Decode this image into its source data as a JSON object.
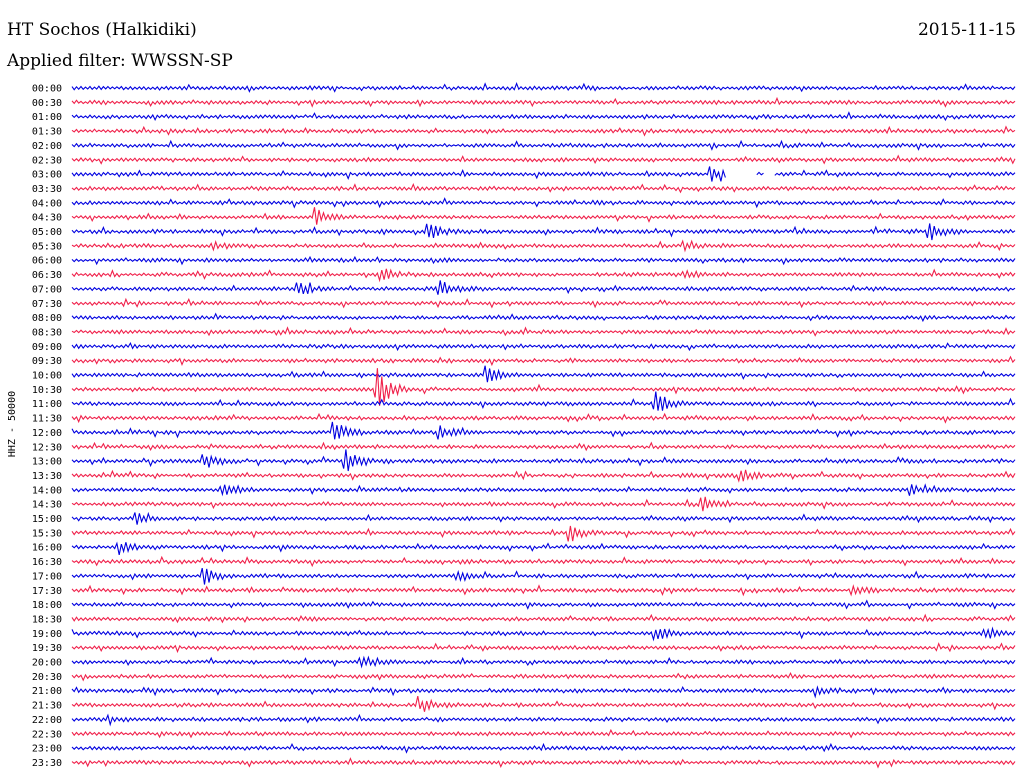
{
  "header": {
    "station": "HT Sochos (Halkidiki)",
    "date": "2015-11-15",
    "filter": "Applied filter: WWSSN-SP"
  },
  "chart_data": {
    "type": "line",
    "subtype": "helicorder",
    "ylabel": "HHZ - 50000",
    "line_minutes": 30,
    "colors": [
      "#0000e0",
      "#f0204a"
    ],
    "trace_labels": [
      "00:00",
      "00:30",
      "01:00",
      "01:30",
      "02:00",
      "02:30",
      "03:00",
      "03:30",
      "04:00",
      "04:30",
      "05:00",
      "05:30",
      "06:00",
      "06:30",
      "07:00",
      "07:30",
      "08:00",
      "08:30",
      "09:00",
      "09:30",
      "10:00",
      "10:30",
      "11:00",
      "11:30",
      "12:00",
      "12:30",
      "13:00",
      "13:30",
      "14:00",
      "14:30",
      "15:00",
      "15:30",
      "16:00",
      "16:30",
      "17:00",
      "17:30",
      "18:00",
      "18:30",
      "19:00",
      "19:30",
      "20:00",
      "20:30",
      "21:00",
      "21:30",
      "22:00",
      "22:30",
      "23:00",
      "23:30"
    ],
    "events": [
      {
        "trace": 6,
        "pos": 0.68,
        "amp": 6
      },
      {
        "trace": 9,
        "pos": 0.26,
        "amp": 8
      },
      {
        "trace": 10,
        "pos": 0.38,
        "amp": 7
      },
      {
        "trace": 10,
        "pos": 0.91,
        "amp": 9
      },
      {
        "trace": 11,
        "pos": 0.15,
        "amp": 4
      },
      {
        "trace": 11,
        "pos": 0.65,
        "amp": 5
      },
      {
        "trace": 13,
        "pos": 0.33,
        "amp": 6
      },
      {
        "trace": 13,
        "pos": 0.65,
        "amp": 6
      },
      {
        "trace": 14,
        "pos": 0.24,
        "amp": 7
      },
      {
        "trace": 14,
        "pos": 0.39,
        "amp": 8
      },
      {
        "trace": 20,
        "pos": 0.44,
        "amp": 8
      },
      {
        "trace": 21,
        "pos": 0.325,
        "amp": 20
      },
      {
        "trace": 22,
        "pos": 0.62,
        "amp": 10
      },
      {
        "trace": 24,
        "pos": 0.28,
        "amp": 10
      },
      {
        "trace": 24,
        "pos": 0.39,
        "amp": 6
      },
      {
        "trace": 26,
        "pos": 0.14,
        "amp": 8
      },
      {
        "trace": 26,
        "pos": 0.29,
        "amp": 12
      },
      {
        "trace": 27,
        "pos": 0.71,
        "amp": 6
      },
      {
        "trace": 28,
        "pos": 0.16,
        "amp": 7
      },
      {
        "trace": 28,
        "pos": 0.89,
        "amp": 5
      },
      {
        "trace": 29,
        "pos": 0.67,
        "amp": 6
      },
      {
        "trace": 30,
        "pos": 0.07,
        "amp": 5
      },
      {
        "trace": 31,
        "pos": 0.53,
        "amp": 8
      },
      {
        "trace": 32,
        "pos": 0.05,
        "amp": 6
      },
      {
        "trace": 34,
        "pos": 0.14,
        "amp": 9
      },
      {
        "trace": 34,
        "pos": 0.41,
        "amp": 5
      },
      {
        "trace": 35,
        "pos": 0.83,
        "amp": 5
      },
      {
        "trace": 38,
        "pos": 0.62,
        "amp": 8
      },
      {
        "trace": 38,
        "pos": 0.97,
        "amp": 6
      },
      {
        "trace": 40,
        "pos": 0.31,
        "amp": 6
      },
      {
        "trace": 42,
        "pos": 0.79,
        "amp": 5
      },
      {
        "trace": 43,
        "pos": 0.37,
        "amp": 8
      },
      {
        "trace": 44,
        "pos": 0.04,
        "amp": 4
      }
    ],
    "gaps": [
      {
        "trace": 6,
        "from": 0.695,
        "to": 0.725
      },
      {
        "trace": 6,
        "from": 0.735,
        "to": 0.745
      }
    ]
  }
}
